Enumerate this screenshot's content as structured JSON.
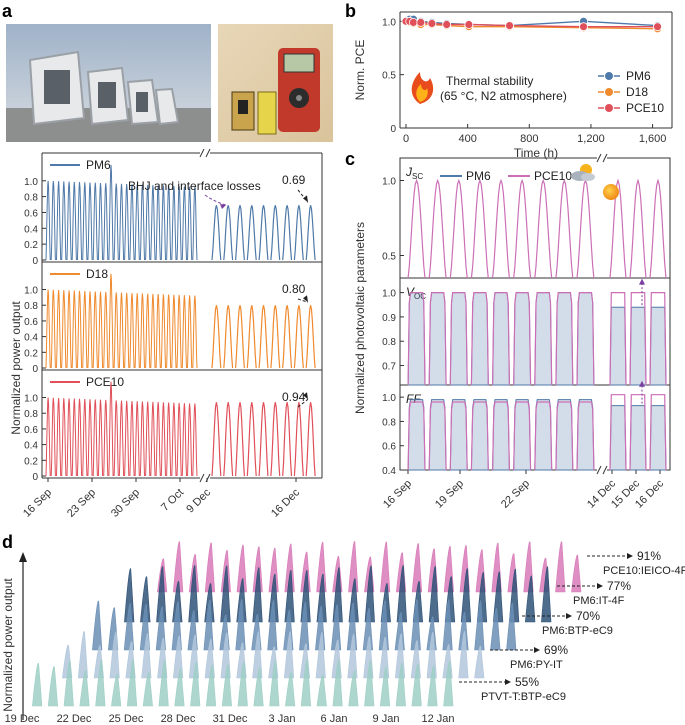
{
  "panel_labels": {
    "a": "a",
    "b": "b",
    "c": "c",
    "d": "d"
  },
  "colors": {
    "pm6": "#4f79a8",
    "d18": "#ef8a2e",
    "pce10": "#e0505a",
    "pce10_c": "#cc6fb6",
    "grid": "#dddddd"
  },
  "chart_data": [
    {
      "id": "a",
      "type": "line",
      "ylabel": "Normalized power output",
      "x_tick_labels": [
        "16 Sep",
        "23 Sep",
        "30 Sep",
        "7 Oct",
        "9 Dec",
        "16 Dec"
      ],
      "yticks": [
        "0",
        "0.2",
        "0.4",
        "0.6",
        "0.8",
        "1.0"
      ],
      "ylim": [
        0,
        1.3
      ],
      "annotation": "BHJ and interface losses",
      "series": [
        {
          "name": "PM6",
          "color": "#4f79a8",
          "end_value": 0.69,
          "end_label": "0.69",
          "peak_value": 1.2,
          "sep_oct_days": 29,
          "dec_days": 9
        },
        {
          "name": "D18",
          "color": "#ef8a2e",
          "end_value": 0.8,
          "end_label": "0.80",
          "peak_value": 1.2,
          "sep_oct_days": 29,
          "dec_days": 9
        },
        {
          "name": "PCE10",
          "color": "#e0505a",
          "end_value": 0.94,
          "end_label": "0.94",
          "peak_value": 1.2,
          "sep_oct_days": 29,
          "dec_days": 9
        }
      ]
    },
    {
      "id": "b",
      "type": "line",
      "title": "Thermal stability",
      "subtitle": "(65 °C, N2 atmosphere)",
      "xlabel": "Time (h)",
      "ylabel": "Norm. PCE",
      "xlim": [
        0,
        1700
      ],
      "ylim": [
        0,
        1.05
      ],
      "x_tick_labels": [
        "0",
        "400",
        "800",
        "1,200",
        "1,600"
      ],
      "y_tick_labels": [
        "0",
        "0.5",
        "1.0"
      ],
      "x": [
        0,
        24,
        48,
        96,
        168,
        264,
        408,
        672,
        1152,
        1632
      ],
      "series": [
        {
          "name": "PM6",
          "color": "#4f79a8",
          "values": [
            1.0,
            1.02,
            1.02,
            1.0,
            0.99,
            0.98,
            0.97,
            0.96,
            1.0,
            0.96
          ]
        },
        {
          "name": "D18",
          "color": "#ef8a2e",
          "values": [
            1.0,
            0.99,
            0.98,
            0.97,
            0.97,
            0.96,
            0.95,
            0.95,
            0.94,
            0.93
          ]
        },
        {
          "name": "PCE10",
          "color": "#e0505a",
          "values": [
            1.0,
            1.0,
            0.99,
            0.99,
            0.98,
            0.97,
            0.97,
            0.96,
            0.95,
            0.95
          ]
        }
      ]
    },
    {
      "id": "c",
      "type": "line",
      "ylabel": "Normalized photovoltaic parameters",
      "x_tick_labels": [
        "16 Sep",
        "19 Sep",
        "22 Sep",
        "14 Dec",
        "15 Dec",
        "16 Dec"
      ],
      "legend": [
        "PM6",
        "PCE10"
      ],
      "subplots": [
        {
          "label_main": "J",
          "label_sub": "SC",
          "yticks": [
            "0.5",
            "1.0"
          ],
          "ylim": [
            0.35,
            1.15
          ],
          "pm6_peak": 1.0,
          "pce10_peak": 1.0
        },
        {
          "label_main": "V",
          "label_sub": "OC",
          "yticks": [
            "0.7",
            "0.8",
            "0.9",
            "1.0"
          ],
          "ylim": [
            0.62,
            1.06
          ],
          "pm6_peak": 1.0,
          "pce10_peak": 1.0,
          "pm6_dec": 0.94,
          "pce10_dec": 1.0
        },
        {
          "label_main": "FF",
          "label_sub": "",
          "yticks": [
            "0.4",
            "0.6",
            "0.8",
            "1.0"
          ],
          "ylim": [
            0.4,
            1.1
          ],
          "pm6_peak": 0.98,
          "pce10_peak": 0.96,
          "pm6_dec": 0.93,
          "pce10_dec": 1.02
        }
      ]
    },
    {
      "id": "d",
      "type": "area",
      "ylabel": "Normalized power output",
      "x_tick_labels": [
        "19 Dec",
        "22 Dec",
        "25 Dec",
        "28 Dec",
        "31 Dec",
        "3 Jan",
        "6 Jan",
        "9 Jan",
        "12 Jan"
      ],
      "series": [
        {
          "name": "PCE10:IEICO-4F",
          "color": "#d87ab8",
          "retention": "91%"
        },
        {
          "name": "PM6:IT-4F",
          "color": "#2f5278",
          "retention": "77%"
        },
        {
          "name": "PM6:BTP-eC9",
          "color": "#6b8fb5",
          "retention": "70%"
        },
        {
          "name": "PM6:PY-IT",
          "color": "#b2c7dc",
          "retention": "69%"
        },
        {
          "name": "PTVT-T:BTP-eC9",
          "color": "#9fcfc5",
          "retention": "55%"
        }
      ]
    }
  ]
}
